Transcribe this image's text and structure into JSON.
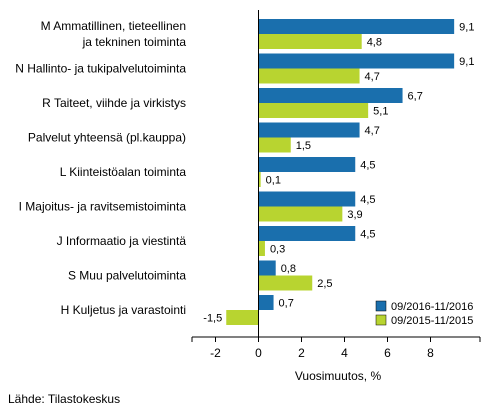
{
  "chart_data": {
    "type": "bar",
    "orientation": "horizontal",
    "categories": [
      "M Ammatillinen, tieteellinen\nja tekninen toiminta",
      "N Hallinto- ja tukipalvelutoiminta",
      "R Taiteet, viihde ja virkistys",
      "Palvelut yhteensä (pl.kauppa)",
      "L Kiinteistöalan toiminta",
      "I Majoitus- ja ravitsemistoiminta",
      "J Informaatio ja viestintä",
      "S Muu palvelutoiminta",
      "H Kuljetus ja varastointi"
    ],
    "series": [
      {
        "name": "09/2016-11/2016",
        "color": "#1a6fad",
        "values": [
          9.1,
          9.1,
          6.7,
          4.7,
          4.5,
          4.5,
          4.5,
          0.8,
          0.7
        ],
        "labels": [
          "9,1",
          "9,1",
          "6,7",
          "4,7",
          "4,5",
          "4,5",
          "4,5",
          "0,8",
          "0,7"
        ]
      },
      {
        "name": "09/2015-11/2015",
        "color": "#b8d430",
        "values": [
          4.8,
          4.7,
          5.1,
          1.5,
          0.1,
          3.9,
          0.3,
          2.5,
          -1.5
        ],
        "labels": [
          "4,8",
          "4,7",
          "5,1",
          "1,5",
          "0,1",
          "3,9",
          "0,3",
          "2,5",
          "-1,5"
        ]
      }
    ],
    "xlabel": "Vuosimuutos, %",
    "xlim": [
      -3,
      10
    ],
    "xticks": [
      -2,
      0,
      2,
      4,
      6,
      8
    ],
    "grid": false,
    "legend_position": "bottom-right"
  },
  "source": "Lähde: Tilastokeskus"
}
